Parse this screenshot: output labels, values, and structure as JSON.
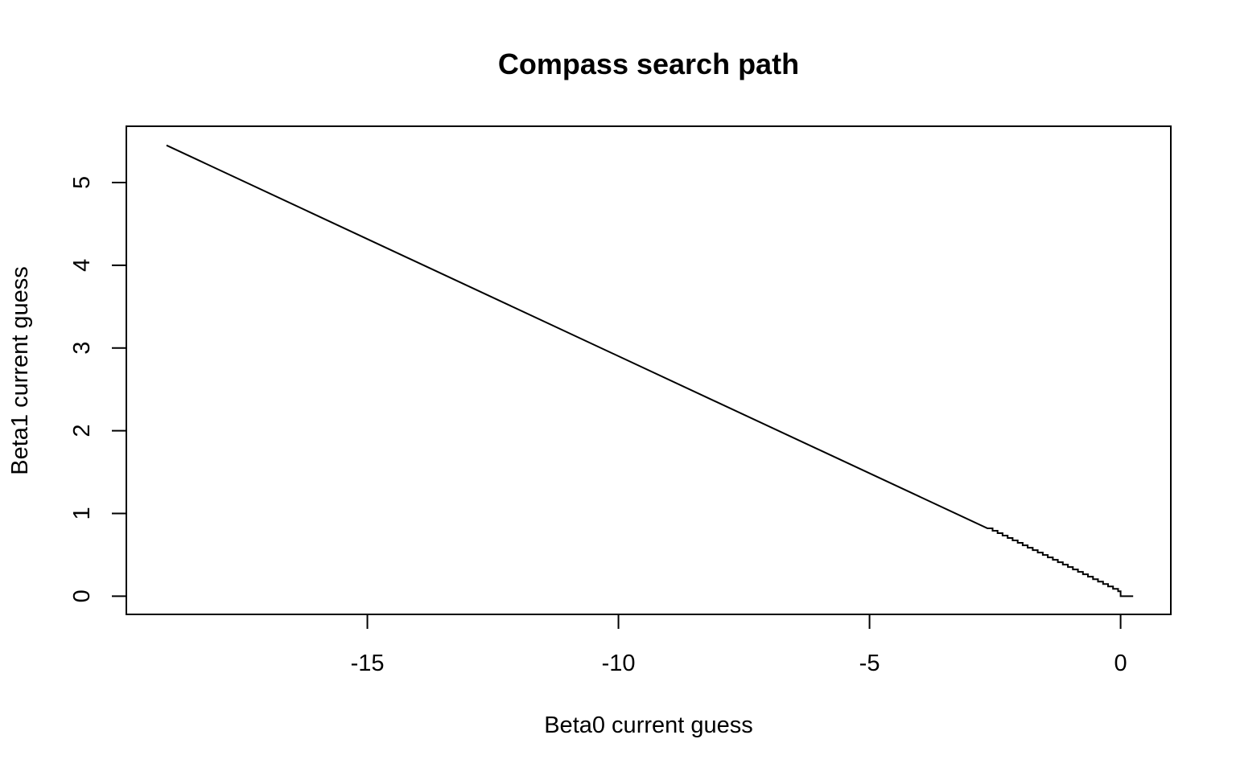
{
  "chart_data": {
    "type": "line",
    "title": "Compass search path",
    "xlabel": "Beta0 current guess",
    "ylabel": "Beta1 current guess",
    "xlim": [
      -19.8,
      1.0
    ],
    "ylim": [
      -0.22,
      5.68
    ],
    "x_ticks": [
      -15,
      -10,
      -5,
      0
    ],
    "y_ticks": [
      0,
      1,
      2,
      3,
      4,
      5
    ],
    "grid": false,
    "legend": "none",
    "line_color": "#000000",
    "path_start": [
      -19.0,
      5.45
    ],
    "path_end": [
      0.25,
      0.0
    ],
    "series": [
      {
        "name": "",
        "x": [
          -19.0,
          -2.65,
          0.0,
          0.0,
          0.25
        ],
        "y": [
          5.45,
          0.82,
          0.06,
          0.0,
          0.0
        ]
      }
    ],
    "staircase_region": {
      "x_from": -2.65,
      "x_to": 0.0,
      "step_x": 0.1,
      "step_y": 0.03
    }
  }
}
